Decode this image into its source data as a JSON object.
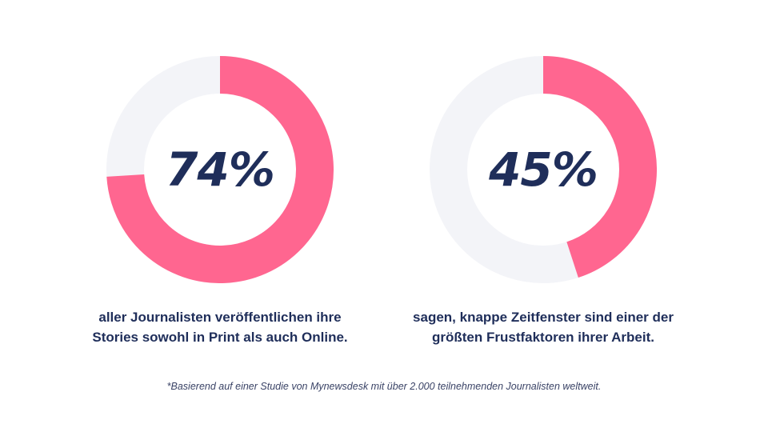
{
  "chart_data": [
    {
      "type": "pie",
      "variant": "donut",
      "values": [
        74,
        26
      ],
      "center_label": "74%",
      "caption_lines": [
        "aller Journalisten veröffentlichen ihre",
        "Stories sowohl in Print als auch Online."
      ]
    },
    {
      "type": "pie",
      "variant": "donut",
      "values": [
        45,
        55
      ],
      "center_label": "45%",
      "caption_lines": [
        "sagen, knappe Zeitfenster sind einer der",
        "größten Frustfaktoren ihrer Arbeit."
      ]
    }
  ],
  "colors": {
    "filled": "#ff6690",
    "track": "#f3f4f8",
    "text": "#1f2e5a"
  },
  "footnote": "*Basierend auf einer Studie von Mynewsdesk mit über 2.000 teilnehmenden Journalisten weltweit."
}
